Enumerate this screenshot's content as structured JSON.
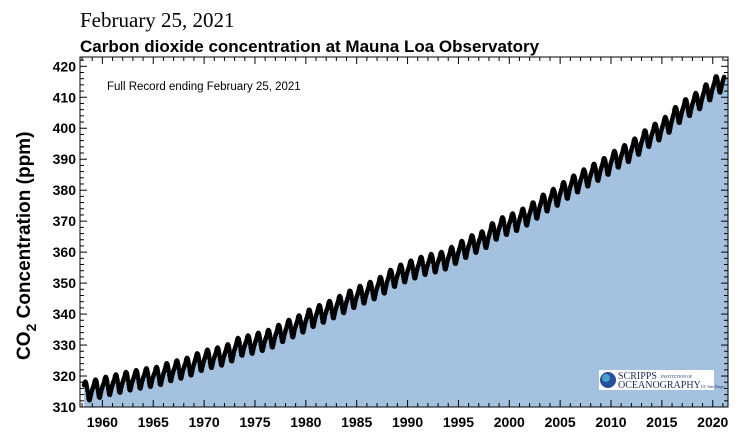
{
  "header": {
    "date": "February 25, 2021"
  },
  "chart_data": {
    "type": "scatter",
    "title": "Carbon dioxide concentration at Mauna Loa Observatory",
    "annotation": "Full Record ending February 25, 2021",
    "ylabel_main": "CO",
    "ylabel_sub": "2",
    "ylabel_rest": " Concentration (ppm)",
    "xlim": [
      1957.8,
      2021.5
    ],
    "ylim": [
      310,
      423
    ],
    "xticks": [
      1960,
      1965,
      1970,
      1975,
      1980,
      1985,
      1990,
      1995,
      2000,
      2005,
      2010,
      2015,
      2020
    ],
    "yticks": [
      310,
      320,
      330,
      340,
      350,
      360,
      370,
      380,
      390,
      400,
      410,
      420
    ],
    "grid": false,
    "fill_color": "#a4c2e0",
    "point_color": "#000000",
    "annual_mean_years": [
      1958,
      1959,
      1960,
      1961,
      1962,
      1963,
      1964,
      1965,
      1966,
      1967,
      1968,
      1969,
      1970,
      1971,
      1972,
      1973,
      1974,
      1975,
      1976,
      1977,
      1978,
      1979,
      1980,
      1981,
      1982,
      1983,
      1984,
      1985,
      1986,
      1987,
      1988,
      1989,
      1990,
      1991,
      1992,
      1993,
      1994,
      1995,
      1996,
      1997,
      1998,
      1999,
      2000,
      2001,
      2002,
      2003,
      2004,
      2005,
      2006,
      2007,
      2008,
      2009,
      2010,
      2011,
      2012,
      2013,
      2014,
      2015,
      2016,
      2017,
      2018,
      2019,
      2020,
      2021
    ],
    "annual_mean_ppm": [
      315.2,
      315.98,
      316.91,
      317.64,
      318.45,
      318.99,
      319.62,
      320.04,
      321.37,
      322.18,
      323.05,
      324.62,
      325.68,
      326.32,
      327.46,
      329.68,
      330.19,
      331.13,
      332.03,
      333.84,
      335.41,
      336.84,
      338.76,
      340.12,
      341.48,
      343.15,
      344.87,
      346.35,
      347.61,
      349.31,
      351.69,
      353.2,
      354.45,
      355.7,
      356.54,
      357.21,
      358.96,
      360.97,
      362.74,
      363.88,
      366.84,
      368.54,
      369.71,
      371.32,
      373.45,
      375.98,
      377.7,
      379.98,
      382.09,
      384.02,
      385.83,
      387.64,
      390.1,
      391.85,
      394.06,
      396.74,
      398.81,
      401.01,
      404.41,
      406.76,
      408.72,
      411.66,
      414.24,
      416.4
    ],
    "seasonal_cycle_ppm": [
      0.0,
      0.7,
      1.4,
      2.6,
      3.0,
      2.3,
      0.8,
      -1.3,
      -3.0,
      -3.2,
      -2.0,
      -0.8
    ],
    "record_start": 1958.2,
    "record_end": 2021.15
  },
  "logo": {
    "line1": "SCRIPPS",
    "line1b": "INSTITUTION OF",
    "line2": "OCEANOGRAPHY",
    "line2b": "UC San Diego"
  }
}
